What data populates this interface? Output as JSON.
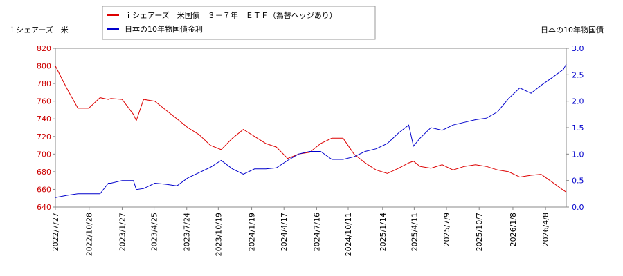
{
  "chart_data": {
    "type": "line",
    "ylabel": "ｉシェアーズ　米",
    "y2label": "日本の10年物国債",
    "x": [
      "2022/7/27",
      "2022/8/27",
      "2022/9/27",
      "2022/10/27",
      "2022/11/27",
      "2022/12/20",
      "2022/12/27",
      "2023/1/27",
      "2023/2/27",
      "2023/3/7",
      "2023/3/27",
      "2023/4/27",
      "2023/5/27",
      "2023/6/27",
      "2023/7/27",
      "2023/8/27",
      "2023/9/27",
      "2023/10/27",
      "2023/11/27",
      "2023/12/27",
      "2024/1/27",
      "2024/2/27",
      "2024/3/27",
      "2024/4/27",
      "2024/5/27",
      "2024/6/27",
      "2024/7/27",
      "2024/8/27",
      "2024/9/27",
      "2024/10/27",
      "2024/11/27",
      "2024/12/27",
      "2025/1/27",
      "2025/2/27",
      "2025/3/27",
      "2025/4/9",
      "2025/4/27",
      "2025/5/27",
      "2025/6/27",
      "2025/7/27",
      "2025/8/27",
      "2025/9/27",
      "2025/10/27",
      "2025/11/27",
      "2025/12/27",
      "2026/1/27",
      "2026/2/27",
      "2026/3/27",
      "2026/4/27",
      "2026/5/27",
      "2026/6/4"
    ],
    "xlim": [
      "2022/7/27",
      "2026/6/4"
    ],
    "xticks": [
      "2022/7/27",
      "2022/10/28",
      "2023/1/27",
      "2023/4/25",
      "2023/7/24",
      "2023/10/19",
      "2024/1/19",
      "2024/4/17",
      "2024/7/16",
      "2024/10/11",
      "2025/1/14",
      "2025/4/11",
      "2025/7/9",
      "2025/10/7",
      "2026/1/8",
      "2026/4/8"
    ],
    "series": [
      {
        "name": "ｉシェアーズ　米国債　３－７年　ＥＴＦ（為替ヘッジあり）",
        "color": "#dd0000",
        "values": [
          800,
          775,
          752,
          752,
          764,
          762,
          763,
          762,
          745,
          738,
          762,
          760,
          750,
          740,
          730,
          722,
          710,
          705,
          718,
          728,
          720,
          712,
          708,
          695,
          700,
          702,
          712,
          718,
          718,
          700,
          690,
          682,
          678,
          684,
          690,
          692,
          686,
          684,
          688,
          682,
          686,
          688,
          686,
          682,
          680,
          674,
          676,
          677,
          668,
          659,
          657
        ]
      },
      {
        "name": "日本の10年物国債金利",
        "color": "#0000cc",
        "axis": "y2",
        "values": [
          0.18,
          0.22,
          0.25,
          0.25,
          0.25,
          0.45,
          0.45,
          0.5,
          0.5,
          0.33,
          0.35,
          0.45,
          0.43,
          0.4,
          0.55,
          0.65,
          0.75,
          0.88,
          0.72,
          0.62,
          0.72,
          0.72,
          0.74,
          0.88,
          1.0,
          1.05,
          1.05,
          0.9,
          0.9,
          0.95,
          1.05,
          1.1,
          1.2,
          1.4,
          1.55,
          1.15,
          1.3,
          1.5,
          1.45,
          1.55,
          1.6,
          1.65,
          1.68,
          1.8,
          2.05,
          2.25,
          2.15,
          2.3,
          2.45,
          2.6,
          2.7
        ]
      }
    ],
    "ylim": [
      640,
      820
    ],
    "yticks": [
      640,
      660,
      680,
      700,
      720,
      740,
      760,
      780,
      800,
      820
    ],
    "y2lim": [
      0,
      3
    ],
    "y2ticks": [
      {
        "value": 0,
        "label": "0.0"
      },
      0.5,
      {
        "value": 1,
        "label": "1.0"
      },
      1.5,
      {
        "value": 2,
        "label": "2.0"
      },
      2.5,
      {
        "value": 3,
        "label": "3.0"
      }
    ],
    "ytick_color": "#cc0000",
    "y2tick_color": "#0000cc"
  }
}
